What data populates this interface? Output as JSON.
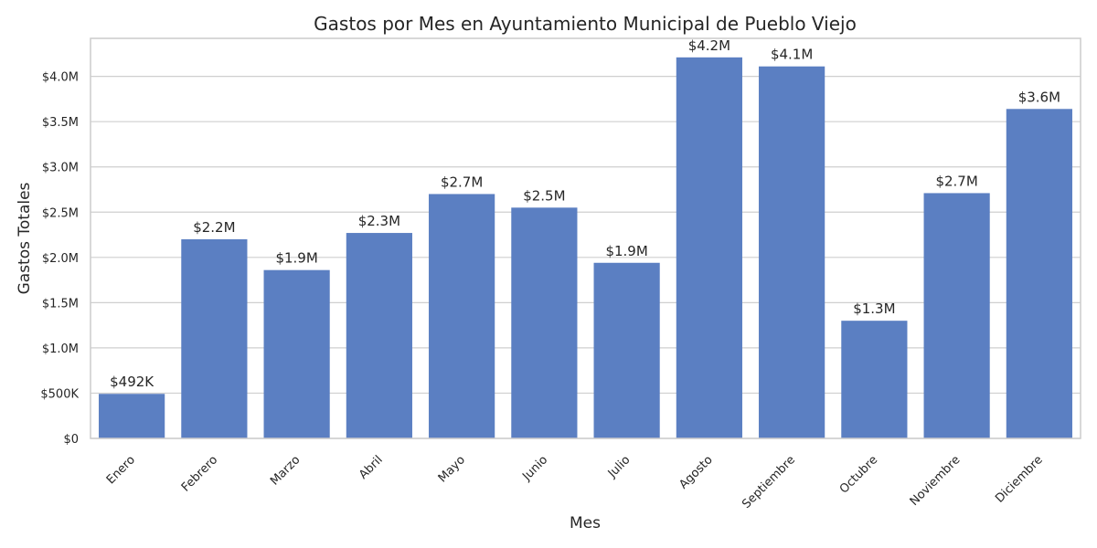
{
  "chart_data": {
    "type": "bar",
    "title": "Gastos por Mes en Ayuntamiento Municipal de Pueblo Viejo",
    "xlabel": "Mes",
    "ylabel": "Gastos Totales",
    "categories": [
      "Enero",
      "Febrero",
      "Marzo",
      "Abril",
      "Mayo",
      "Junio",
      "Julio",
      "Agosto",
      "Septiembre",
      "Octubre",
      "Noviembre",
      "Diciembre"
    ],
    "values": [
      492000,
      2200000,
      1860000,
      2270000,
      2700000,
      2550000,
      1940000,
      4210000,
      4110000,
      1300000,
      2710000,
      3640000
    ],
    "data_labels": [
      "$492K",
      "$2.2M",
      "$1.9M",
      "$2.3M",
      "$2.7M",
      "$2.5M",
      "$1.9M",
      "$4.2M",
      "$4.1M",
      "$1.3M",
      "$2.7M",
      "$3.6M"
    ],
    "yticks": [
      0,
      500000,
      1000000,
      1500000,
      2000000,
      2500000,
      3000000,
      3500000,
      4000000
    ],
    "ytick_labels": [
      "$0",
      "$500K",
      "$1.0M",
      "$1.5M",
      "$2.0M",
      "$2.5M",
      "$3.0M",
      "$3.5M",
      "$4.0M"
    ],
    "ylim": [
      0,
      4420000
    ],
    "grid": true,
    "colors": {
      "bar": "#5b7fc2",
      "grid": "#cfcfcf",
      "text": "#262626"
    }
  }
}
